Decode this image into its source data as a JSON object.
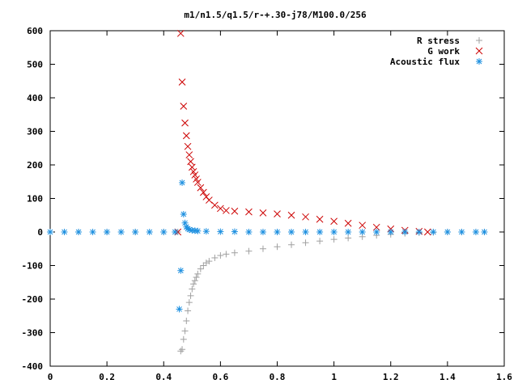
{
  "chart_data": {
    "type": "scatter",
    "title": "m1/n1.5/q1.5/r-+.30-j78/M100.0/256",
    "xlabel": "",
    "ylabel": "",
    "xlim": [
      0,
      1.6
    ],
    "ylim": [
      -400,
      600
    ],
    "x_ticks": [
      "0",
      "0.2",
      "0.4",
      "0.6",
      "0.8",
      "1",
      "1.2",
      "1.4",
      "1.6"
    ],
    "y_ticks": [
      "600",
      "500",
      "400",
      "300",
      "200",
      "100",
      "0",
      "-100",
      "-200",
      "-300",
      "-400"
    ],
    "grid": false,
    "legend_position": "top-right",
    "series": [
      {
        "name": "R stress",
        "marker": "plus",
        "color": "#a0a0a0",
        "x": [
          0.0,
          0.1,
          0.2,
          0.3,
          0.4,
          0.45,
          0.46,
          0.465,
          0.47,
          0.475,
          0.48,
          0.485,
          0.49,
          0.495,
          0.5,
          0.505,
          0.51,
          0.515,
          0.52,
          0.53,
          0.54,
          0.55,
          0.56,
          0.58,
          0.6,
          0.62,
          0.65,
          0.7,
          0.75,
          0.8,
          0.85,
          0.9,
          0.95,
          1.0,
          1.05,
          1.1,
          1.15,
          1.2,
          1.25,
          1.3,
          1.35,
          1.4,
          1.45,
          1.5,
          1.53
        ],
        "y": [
          0,
          0,
          0,
          0,
          0,
          0,
          -355,
          -350,
          -320,
          -295,
          -265,
          -235,
          -210,
          -190,
          -170,
          -155,
          -145,
          -135,
          -125,
          -110,
          -100,
          -92,
          -87,
          -77,
          -70,
          -66,
          -62,
          -57,
          -50,
          -44,
          -38,
          -32,
          -27,
          -22,
          -18,
          -14,
          -10,
          -7,
          -4,
          -2,
          -1,
          0,
          0,
          0,
          0
        ]
      },
      {
        "name": "G work",
        "marker": "cross",
        "color": "#cc0000",
        "x": [
          0.45,
          0.46,
          0.465,
          0.47,
          0.475,
          0.48,
          0.485,
          0.49,
          0.495,
          0.5,
          0.505,
          0.51,
          0.515,
          0.52,
          0.53,
          0.54,
          0.55,
          0.56,
          0.58,
          0.6,
          0.62,
          0.65,
          0.7,
          0.75,
          0.8,
          0.85,
          0.9,
          0.95,
          1.0,
          1.05,
          1.1,
          1.15,
          1.2,
          1.25,
          1.3,
          1.33
        ],
        "y": [
          0,
          592,
          447,
          375,
          325,
          287,
          255,
          230,
          210,
          193,
          180,
          170,
          158,
          148,
          132,
          118,
          105,
          95,
          80,
          70,
          64,
          62,
          60,
          57,
          54,
          50,
          45,
          38,
          32,
          26,
          20,
          14,
          9,
          5,
          2,
          0
        ]
      },
      {
        "name": "Acoustic flux",
        "marker": "star",
        "color": "#1e90e0",
        "x": [
          0.0,
          0.05,
          0.1,
          0.15,
          0.2,
          0.25,
          0.3,
          0.35,
          0.4,
          0.44,
          0.455,
          0.46,
          0.465,
          0.47,
          0.475,
          0.48,
          0.485,
          0.49,
          0.5,
          0.51,
          0.52,
          0.55,
          0.6,
          0.65,
          0.7,
          0.75,
          0.8,
          0.85,
          0.9,
          0.95,
          1.0,
          1.05,
          1.1,
          1.15,
          1.2,
          1.25,
          1.3,
          1.35,
          1.4,
          1.45,
          1.5,
          1.53
        ],
        "y": [
          0,
          0,
          0,
          0,
          0,
          0,
          0,
          0,
          0,
          0,
          -230,
          -115,
          147,
          53,
          27,
          15,
          10,
          7,
          5,
          4,
          3,
          2,
          1,
          1,
          0,
          0,
          0,
          0,
          0,
          0,
          0,
          0,
          0,
          0,
          0,
          0,
          0,
          0,
          0,
          0,
          0,
          0
        ]
      }
    ]
  }
}
